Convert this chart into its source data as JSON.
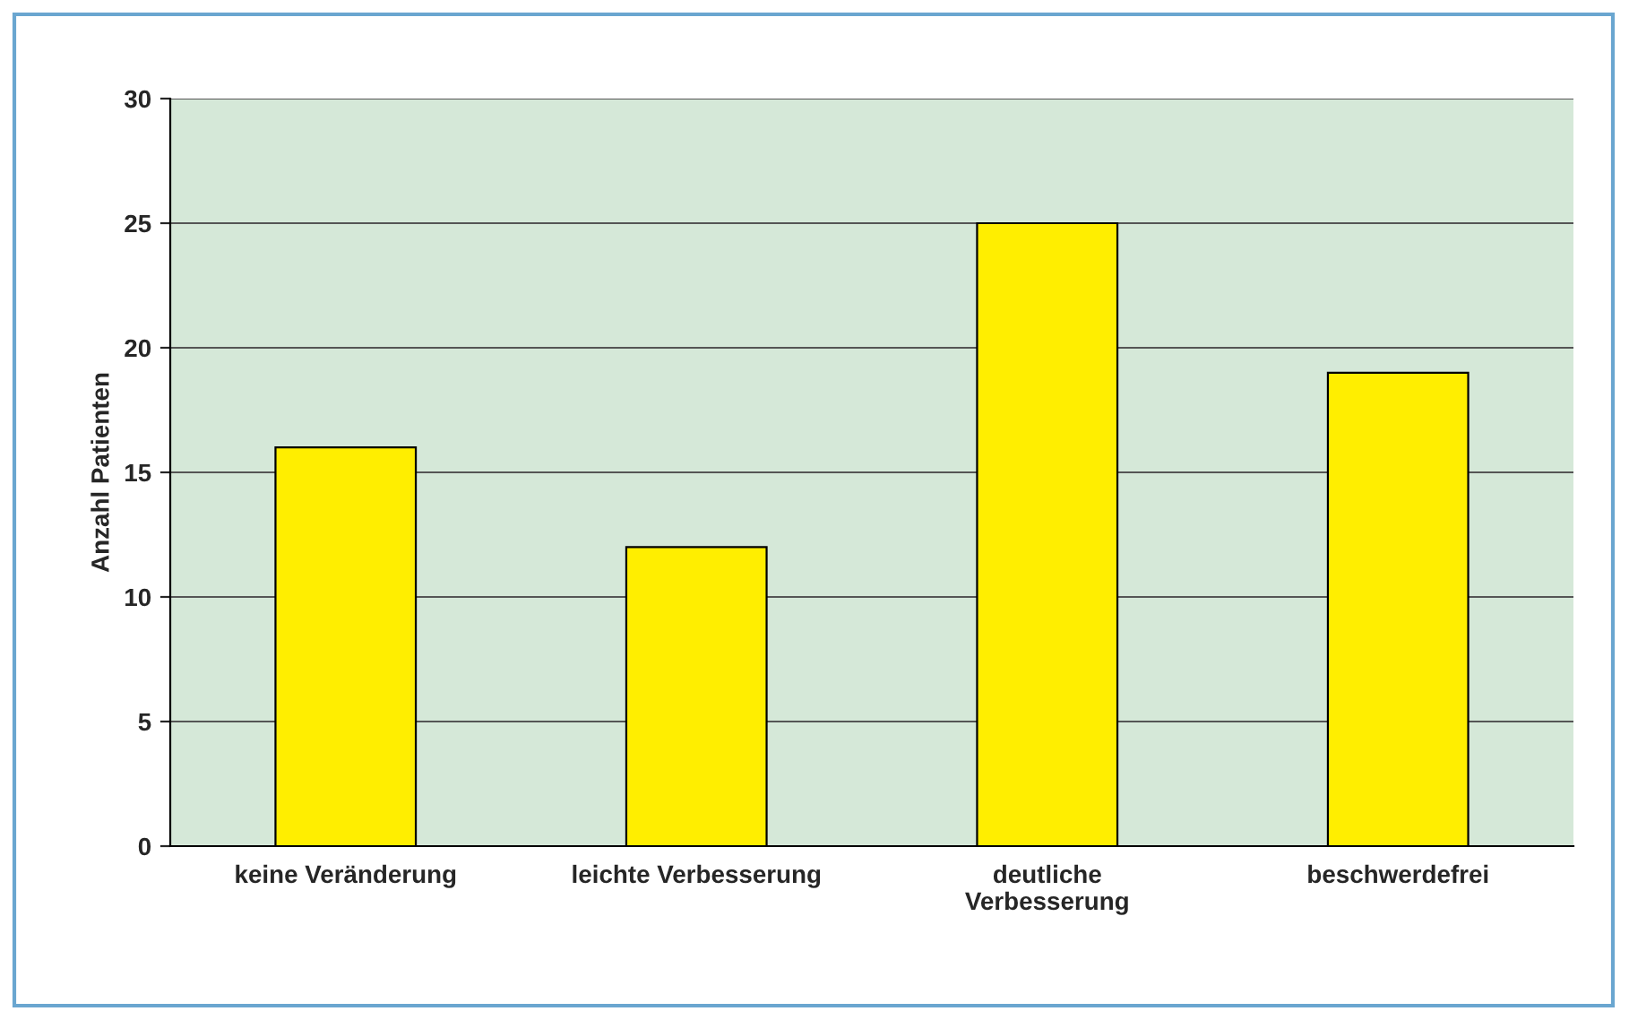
{
  "chart_data": {
    "type": "bar",
    "ylabel": "Anzahl Patienten",
    "categories": [
      "keine Veränderung",
      "leichte Verbesserung",
      "deutliche\nVerbesserung",
      "beschwerdefrei"
    ],
    "values": [
      16,
      12,
      25,
      19
    ],
    "color": "#ffee00",
    "ylim": [
      0,
      30
    ],
    "yticks": [
      0,
      5,
      10,
      15,
      20,
      25,
      30
    ],
    "grid": "y"
  }
}
